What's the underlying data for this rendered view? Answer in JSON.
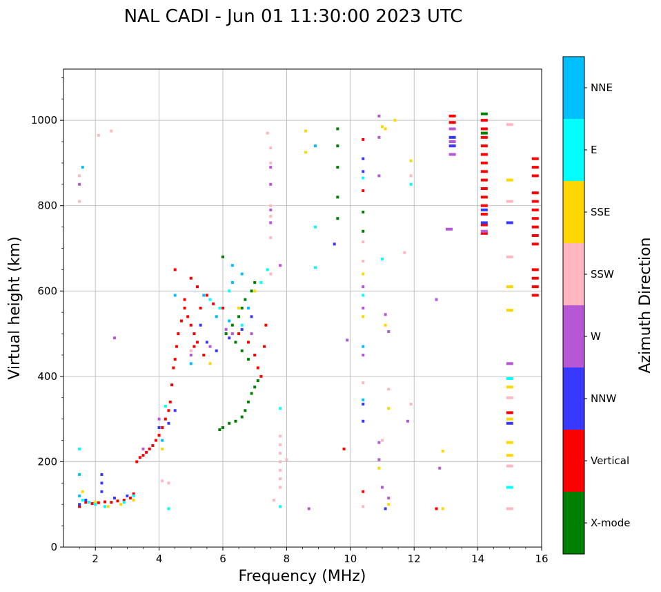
{
  "chart_data": {
    "type": "scatter",
    "title": "NAL CADI - Jun 01 11:30:00 2023 UTC",
    "xlabel": "Frequency (MHz)",
    "ylabel": "Virtual height (km)",
    "xlim": [
      1.0,
      16.0
    ],
    "ylim": [
      0,
      1120
    ],
    "xticks": [
      2,
      4,
      6,
      8,
      10,
      12,
      14,
      16
    ],
    "yticks": [
      0,
      200,
      400,
      600,
      800,
      1000
    ],
    "grid": true,
    "colorbar": {
      "label": "Azimuth Direction",
      "position": "right",
      "categories": [
        {
          "name": "X-mode",
          "color": "#008000"
        },
        {
          "name": "Vertical",
          "color": "#ff0000"
        },
        {
          "name": "NNW",
          "color": "#3838ff"
        },
        {
          "name": "W",
          "color": "#b657d6"
        },
        {
          "name": "SSW",
          "color": "#ffb6c1"
        },
        {
          "name": "SSE",
          "color": "#ffd700"
        },
        {
          "name": "E",
          "color": "#00ffff"
        },
        {
          "name": "NNE",
          "color": "#00bfff"
        }
      ]
    },
    "series": [
      {
        "name": "Vertical",
        "color": "#ff0000",
        "points": [
          [
            1.5,
            95
          ],
          [
            1.7,
            105
          ],
          [
            1.9,
            102
          ],
          [
            2.1,
            104
          ],
          [
            2.3,
            106
          ],
          [
            2.5,
            105
          ],
          [
            2.7,
            108
          ],
          [
            2.9,
            110
          ],
          [
            3.1,
            115
          ],
          [
            3.2,
            125
          ],
          [
            3.3,
            200
          ],
          [
            3.4,
            210
          ],
          [
            3.5,
            215
          ],
          [
            3.6,
            222
          ],
          [
            3.7,
            230
          ],
          [
            3.8,
            238
          ],
          [
            3.9,
            250
          ],
          [
            4.0,
            262
          ],
          [
            4.1,
            280
          ],
          [
            4.2,
            300
          ],
          [
            4.3,
            320
          ],
          [
            4.35,
            340
          ],
          [
            4.4,
            380
          ],
          [
            4.45,
            420
          ],
          [
            4.5,
            440
          ],
          [
            4.55,
            470
          ],
          [
            4.6,
            500
          ],
          [
            4.7,
            530
          ],
          [
            4.8,
            560
          ],
          [
            4.9,
            540
          ],
          [
            5.0,
            520
          ],
          [
            5.1,
            500
          ],
          [
            5.2,
            480
          ],
          [
            5.3,
            560
          ],
          [
            5.5,
            590
          ],
          [
            5.7,
            570
          ],
          [
            6.0,
            560
          ],
          [
            6.5,
            500
          ],
          [
            6.8,
            480
          ],
          [
            7.0,
            450
          ],
          [
            7.1,
            420
          ],
          [
            7.2,
            400
          ],
          [
            7.3,
            470
          ],
          [
            7.35,
            520
          ],
          [
            4.5,
            650
          ],
          [
            5.0,
            630
          ],
          [
            5.2,
            610
          ],
          [
            4.8,
            580
          ],
          [
            5.1,
            470
          ],
          [
            5.4,
            450
          ],
          [
            10.4,
            130
          ],
          [
            9.8,
            230
          ],
          [
            12.7,
            90
          ],
          [
            15.0,
            315
          ],
          [
            10.4,
            835
          ],
          [
            10.4,
            955
          ],
          [
            14.2,
            735
          ],
          [
            14.2,
            755
          ],
          [
            14.2,
            780
          ],
          [
            14.2,
            800
          ],
          [
            14.2,
            820
          ],
          [
            14.2,
            840
          ],
          [
            14.2,
            860
          ],
          [
            14.2,
            880
          ],
          [
            14.2,
            900
          ],
          [
            14.2,
            920
          ],
          [
            14.2,
            940
          ],
          [
            14.2,
            960
          ],
          [
            14.2,
            980
          ],
          [
            14.2,
            1000
          ],
          [
            13.2,
            1010
          ],
          [
            13.2,
            995
          ],
          [
            15.8,
            590
          ],
          [
            15.8,
            610
          ],
          [
            15.8,
            630
          ],
          [
            15.8,
            650
          ],
          [
            15.8,
            710
          ],
          [
            15.8,
            730
          ],
          [
            15.8,
            750
          ],
          [
            15.8,
            770
          ],
          [
            15.8,
            790
          ],
          [
            15.8,
            810
          ],
          [
            15.8,
            830
          ],
          [
            15.8,
            870
          ],
          [
            15.8,
            890
          ],
          [
            15.8,
            910
          ]
        ]
      },
      {
        "name": "X-mode",
        "color": "#008000",
        "points": [
          [
            5.9,
            275
          ],
          [
            6.0,
            280
          ],
          [
            6.2,
            290
          ],
          [
            6.4,
            295
          ],
          [
            6.6,
            305
          ],
          [
            6.7,
            320
          ],
          [
            6.8,
            340
          ],
          [
            6.9,
            360
          ],
          [
            7.0,
            375
          ],
          [
            7.1,
            390
          ],
          [
            6.1,
            500
          ],
          [
            6.3,
            520
          ],
          [
            6.5,
            540
          ],
          [
            6.6,
            560
          ],
          [
            6.7,
            580
          ],
          [
            6.9,
            600
          ],
          [
            7.0,
            620
          ],
          [
            6.0,
            680
          ],
          [
            6.4,
            480
          ],
          [
            6.6,
            460
          ],
          [
            6.8,
            440
          ],
          [
            9.6,
            770
          ],
          [
            9.6,
            820
          ],
          [
            9.6,
            890
          ],
          [
            9.6,
            940
          ],
          [
            9.6,
            980
          ],
          [
            10.4,
            740
          ],
          [
            10.4,
            785
          ],
          [
            14.2,
            1015
          ],
          [
            14.2,
            970
          ]
        ]
      },
      {
        "name": "NNW",
        "color": "#3838ff",
        "points": [
          [
            1.5,
            100
          ],
          [
            1.7,
            110
          ],
          [
            2.2,
            130
          ],
          [
            2.2,
            150
          ],
          [
            2.2,
            170
          ],
          [
            2.6,
            115
          ],
          [
            3.0,
            120
          ],
          [
            4.0,
            280
          ],
          [
            4.3,
            290
          ],
          [
            4.5,
            320
          ],
          [
            5.3,
            520
          ],
          [
            5.5,
            480
          ],
          [
            5.8,
            460
          ],
          [
            6.2,
            490
          ],
          [
            6.6,
            510
          ],
          [
            6.9,
            540
          ],
          [
            9.5,
            710
          ],
          [
            10.4,
            880
          ],
          [
            10.4,
            910
          ],
          [
            10.4,
            335
          ],
          [
            10.4,
            295
          ],
          [
            11.1,
            90
          ],
          [
            15.0,
            760
          ],
          [
            15.0,
            290
          ],
          [
            13.2,
            960
          ],
          [
            13.2,
            940
          ],
          [
            14.2,
            760
          ],
          [
            14.2,
            790
          ]
        ]
      },
      {
        "name": "W",
        "color": "#b657d6",
        "points": [
          [
            1.5,
            850
          ],
          [
            2.6,
            490
          ],
          [
            3.5,
            230
          ],
          [
            4.0,
            300
          ],
          [
            5.0,
            450
          ],
          [
            5.6,
            470
          ],
          [
            6.1,
            510
          ],
          [
            6.3,
            500
          ],
          [
            6.9,
            500
          ],
          [
            7.5,
            850
          ],
          [
            7.5,
            790
          ],
          [
            7.5,
            760
          ],
          [
            7.5,
            890
          ],
          [
            7.8,
            660
          ],
          [
            8.7,
            90
          ],
          [
            9.9,
            485
          ],
          [
            10.4,
            450
          ],
          [
            10.4,
            560
          ],
          [
            10.4,
            610
          ],
          [
            10.9,
            1010
          ],
          [
            10.9,
            960
          ],
          [
            10.9,
            870
          ],
          [
            10.9,
            205
          ],
          [
            10.9,
            245
          ],
          [
            11.1,
            545
          ],
          [
            11.2,
            505
          ],
          [
            11.0,
            140
          ],
          [
            11.2,
            115
          ],
          [
            11.8,
            295
          ],
          [
            12.7,
            580
          ],
          [
            12.8,
            185
          ],
          [
            13.1,
            745
          ],
          [
            13.2,
            920
          ],
          [
            13.2,
            950
          ],
          [
            13.2,
            980
          ],
          [
            14.2,
            740
          ],
          [
            15.0,
            430
          ]
        ]
      },
      {
        "name": "SSW",
        "color": "#ffb6c1",
        "points": [
          [
            1.5,
            870
          ],
          [
            1.5,
            810
          ],
          [
            2.1,
            965
          ],
          [
            2.5,
            975
          ],
          [
            4.1,
            155
          ],
          [
            4.3,
            150
          ],
          [
            5.0,
            460
          ],
          [
            7.4,
            970
          ],
          [
            7.5,
            935
          ],
          [
            7.5,
            900
          ],
          [
            7.5,
            800
          ],
          [
            7.5,
            775
          ],
          [
            7.5,
            725
          ],
          [
            7.5,
            640
          ],
          [
            7.6,
            110
          ],
          [
            7.8,
            140
          ],
          [
            7.8,
            160
          ],
          [
            7.8,
            180
          ],
          [
            7.8,
            200
          ],
          [
            7.8,
            220
          ],
          [
            7.8,
            240
          ],
          [
            7.8,
            260
          ],
          [
            8.0,
            205
          ],
          [
            10.4,
            95
          ],
          [
            10.4,
            715
          ],
          [
            10.4,
            670
          ],
          [
            10.4,
            385
          ],
          [
            11.0,
            250
          ],
          [
            11.2,
            370
          ],
          [
            11.7,
            690
          ],
          [
            11.9,
            870
          ],
          [
            11.9,
            335
          ],
          [
            15.0,
            990
          ],
          [
            15.0,
            810
          ],
          [
            15.0,
            680
          ],
          [
            15.0,
            350
          ],
          [
            15.0,
            190
          ],
          [
            15.0,
            90
          ]
        ]
      },
      {
        "name": "SSE",
        "color": "#ffd700",
        "points": [
          [
            1.6,
            130
          ],
          [
            2.0,
            105
          ],
          [
            2.4,
            95
          ],
          [
            2.8,
            100
          ],
          [
            3.2,
            110
          ],
          [
            4.1,
            230
          ],
          [
            5.6,
            430
          ],
          [
            6.5,
            560
          ],
          [
            7.0,
            600
          ],
          [
            8.6,
            975
          ],
          [
            8.6,
            925
          ],
          [
            10.4,
            540
          ],
          [
            10.4,
            640
          ],
          [
            10.9,
            185
          ],
          [
            11.0,
            985
          ],
          [
            11.1,
            980
          ],
          [
            11.1,
            520
          ],
          [
            11.2,
            100
          ],
          [
            11.2,
            325
          ],
          [
            11.4,
            1000
          ],
          [
            11.9,
            905
          ],
          [
            12.9,
            225
          ],
          [
            12.9,
            90
          ],
          [
            15.0,
            860
          ],
          [
            15.0,
            610
          ],
          [
            15.0,
            555
          ],
          [
            15.0,
            375
          ],
          [
            15.0,
            300
          ],
          [
            15.0,
            245
          ],
          [
            15.0,
            215
          ]
        ]
      },
      {
        "name": "E",
        "color": "#00ffff",
        "points": [
          [
            1.5,
            230
          ],
          [
            1.6,
            110
          ],
          [
            1.8,
            105
          ],
          [
            2.0,
            100
          ],
          [
            2.3,
            95
          ],
          [
            2.9,
            105
          ],
          [
            3.2,
            120
          ],
          [
            4.3,
            90
          ],
          [
            4.2,
            330
          ],
          [
            5.6,
            580
          ],
          [
            5.9,
            560
          ],
          [
            6.2,
            600
          ],
          [
            6.6,
            520
          ],
          [
            7.2,
            620
          ],
          [
            7.4,
            650
          ],
          [
            7.8,
            95
          ],
          [
            7.8,
            325
          ],
          [
            8.9,
            655
          ],
          [
            8.9,
            750
          ],
          [
            10.4,
            865
          ],
          [
            10.4,
            590
          ],
          [
            11.0,
            675
          ],
          [
            11.9,
            850
          ],
          [
            15.0,
            395
          ],
          [
            15.0,
            140
          ]
        ]
      },
      {
        "name": "NNE",
        "color": "#00bfff",
        "points": [
          [
            1.5,
            170
          ],
          [
            1.5,
            120
          ],
          [
            1.6,
            890
          ],
          [
            4.1,
            250
          ],
          [
            4.5,
            590
          ],
          [
            5.0,
            430
          ],
          [
            5.4,
            590
          ],
          [
            5.8,
            540
          ],
          [
            6.2,
            530
          ],
          [
            6.6,
            640
          ],
          [
            6.8,
            560
          ],
          [
            6.3,
            660
          ],
          [
            6.3,
            620
          ],
          [
            8.9,
            940
          ],
          [
            10.4,
            470
          ],
          [
            10.4,
            345
          ]
        ]
      }
    ]
  }
}
